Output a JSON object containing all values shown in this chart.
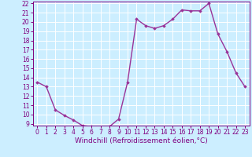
{
  "x": [
    0,
    1,
    2,
    3,
    4,
    5,
    6,
    7,
    8,
    9,
    10,
    11,
    12,
    13,
    14,
    15,
    16,
    17,
    18,
    19,
    20,
    21,
    22,
    23
  ],
  "y": [
    13.5,
    13.0,
    10.5,
    9.9,
    9.4,
    8.8,
    8.7,
    8.6,
    8.7,
    9.5,
    13.5,
    20.3,
    19.6,
    19.3,
    19.6,
    20.3,
    21.3,
    21.2,
    21.2,
    22.0,
    18.7,
    16.8,
    14.5,
    13.0
  ],
  "line_color": "#993399",
  "marker": "D",
  "markersize": 1.8,
  "linewidth": 1.0,
  "xlabel": "Windchill (Refroidissement éolien,°C)",
  "xlabel_fontsize": 6.5,
  "ylim": [
    9,
    22
  ],
  "xlim": [
    -0.5,
    23.5
  ],
  "yticks": [
    9,
    10,
    11,
    12,
    13,
    14,
    15,
    16,
    17,
    18,
    19,
    20,
    21,
    22
  ],
  "xticks": [
    0,
    1,
    2,
    3,
    4,
    5,
    6,
    7,
    8,
    9,
    10,
    11,
    12,
    13,
    14,
    15,
    16,
    17,
    18,
    19,
    20,
    21,
    22,
    23
  ],
  "bg_color": "#cceeff",
  "grid_color": "#ffffff",
  "tick_color": "#800080",
  "tick_fontsize": 5.5,
  "xlabel_color": "#800080",
  "spine_color": "#800080"
}
